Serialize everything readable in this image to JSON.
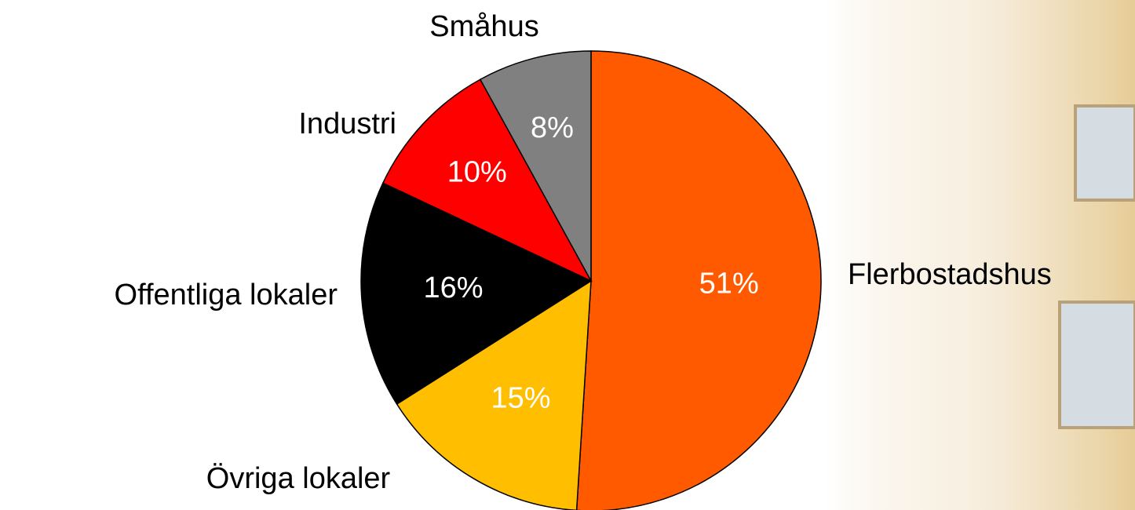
{
  "chart_data": {
    "type": "pie",
    "categories": [
      "Flerbostadshus",
      "Övriga lokaler",
      "Offentliga lokaler",
      "Industri",
      "Småhus"
    ],
    "values": [
      51,
      15,
      16,
      10,
      8
    ],
    "value_labels": [
      "51%",
      "15%",
      "16%",
      "10%",
      "8%"
    ],
    "colors": [
      "#ff5a00",
      "#ffbe00",
      "#000000",
      "#ff0000",
      "#808080"
    ],
    "start_angle": 0,
    "direction": "clockwise"
  }
}
